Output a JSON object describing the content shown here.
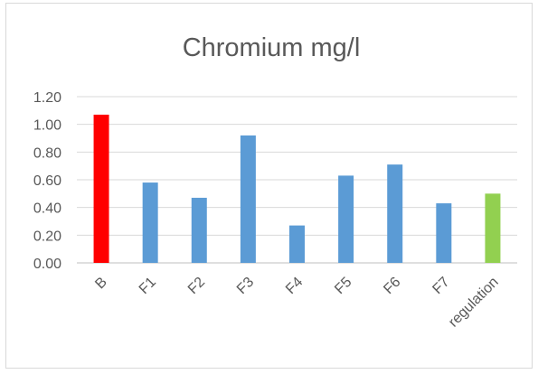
{
  "chart_data": {
    "type": "bar",
    "title": "Chromium mg/l",
    "categories": [
      "B",
      "F1",
      "F2",
      "F3",
      "F4",
      "F5",
      "F6",
      "F7",
      "regulation"
    ],
    "values": [
      1.07,
      0.58,
      0.47,
      0.92,
      0.27,
      0.63,
      0.71,
      0.43,
      0.5
    ],
    "colors": [
      "#ff0000",
      "#5b9bd5",
      "#5b9bd5",
      "#5b9bd5",
      "#5b9bd5",
      "#5b9bd5",
      "#5b9bd5",
      "#5b9bd5",
      "#92d050"
    ],
    "yticks": [
      "0.00",
      "0.20",
      "0.40",
      "0.60",
      "0.80",
      "1.00",
      "1.20"
    ],
    "ylim": [
      0,
      1.2
    ],
    "grid": true,
    "legend": "none",
    "xlabel": "",
    "ylabel": ""
  }
}
